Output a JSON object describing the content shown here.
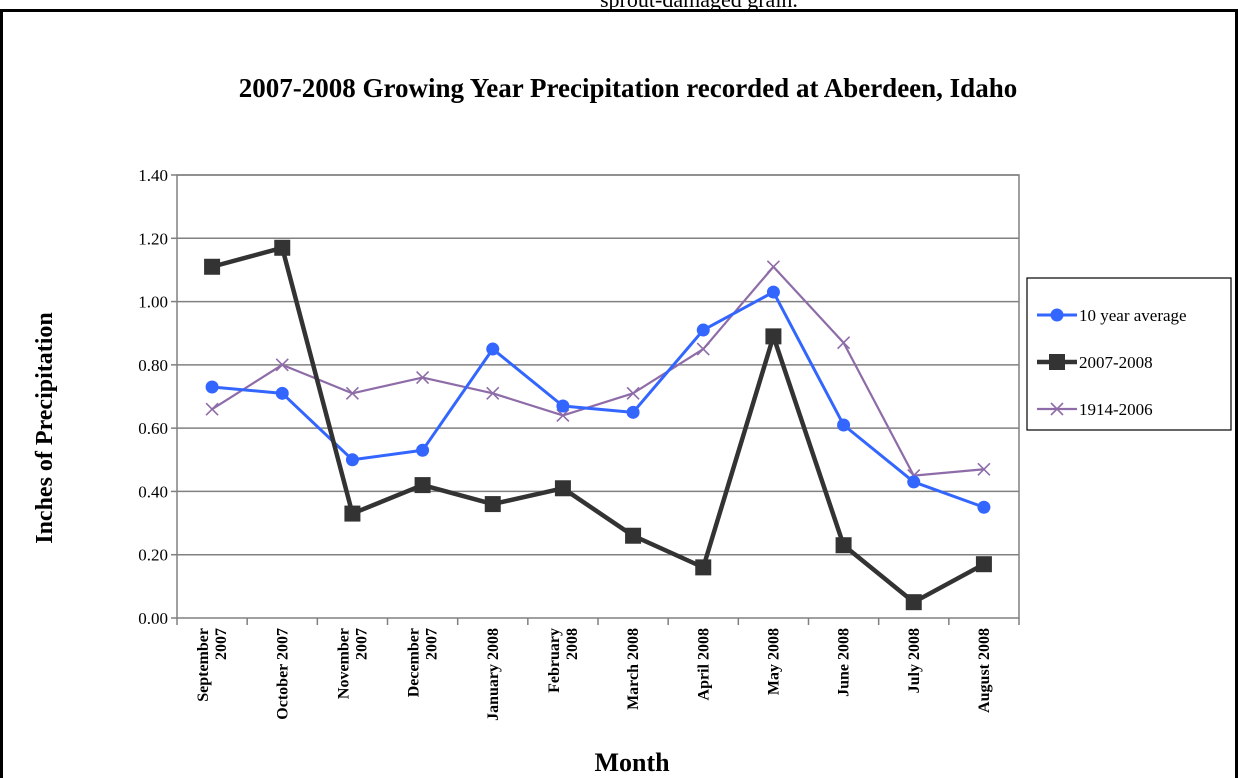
{
  "page_text": "sprout-damaged grain.",
  "chart_data": {
    "type": "line",
    "title": "2007-2008 Growing Year Precipitation recorded at Aberdeen, Idaho",
    "xlabel": "Month",
    "ylabel": "Inches of Precipitation",
    "ylim": [
      0,
      1.4
    ],
    "yticks": [
      "0.00",
      "0.20",
      "0.40",
      "0.60",
      "0.80",
      "1.00",
      "1.20",
      "1.40"
    ],
    "grid": "horizontal",
    "legend_position": "right",
    "categories": [
      [
        "September",
        "2007"
      ],
      [
        "October 2007"
      ],
      [
        "November",
        "2007"
      ],
      [
        "December",
        "2007"
      ],
      [
        "January 2008"
      ],
      [
        "February",
        "2008"
      ],
      [
        "March 2008"
      ],
      [
        "April 2008"
      ],
      [
        "May 2008"
      ],
      [
        "June 2008"
      ],
      [
        "July 2008"
      ],
      [
        "August 2008"
      ]
    ],
    "series": [
      {
        "name": "10 year average",
        "color": "#3366ff",
        "marker": "circle",
        "values": [
          0.73,
          0.71,
          0.5,
          0.53,
          0.85,
          0.67,
          0.65,
          0.91,
          1.03,
          0.61,
          0.43,
          0.35
        ]
      },
      {
        "name": "2007-2008",
        "color": "#333333",
        "marker": "square",
        "values": [
          1.11,
          1.17,
          0.33,
          0.42,
          0.36,
          0.41,
          0.26,
          0.16,
          0.89,
          0.23,
          0.05,
          0.17
        ]
      },
      {
        "name": "1914-2006",
        "color": "#8e6ca8",
        "marker": "x",
        "values": [
          0.66,
          0.8,
          0.71,
          0.76,
          0.71,
          0.64,
          0.71,
          0.85,
          1.11,
          0.87,
          0.45,
          0.47
        ]
      }
    ]
  }
}
